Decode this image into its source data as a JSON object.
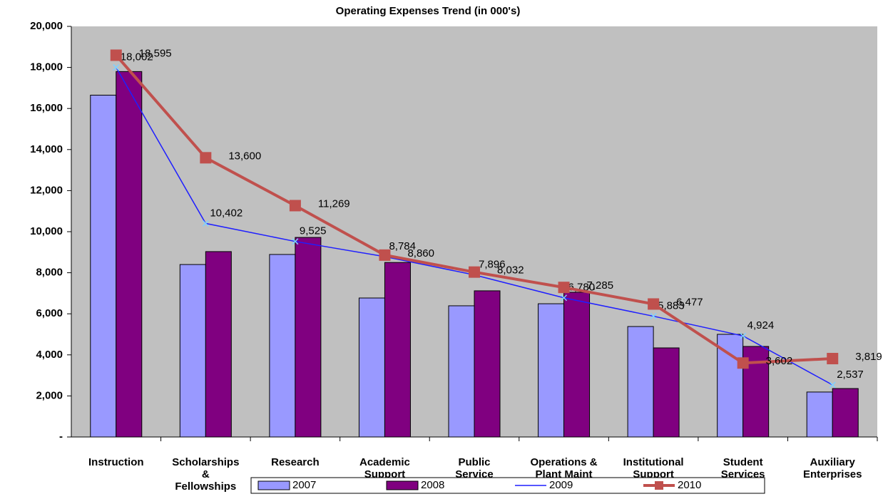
{
  "chart_data": {
    "type": "bar_line",
    "title": "Operating Expenses Trend (in 000's)",
    "categories": [
      [
        "Instruction"
      ],
      [
        "Scholarships",
        "&",
        "Fellowships"
      ],
      [
        "Research"
      ],
      [
        "Academic",
        "Support"
      ],
      [
        "Public",
        "Service"
      ],
      [
        "Operations &",
        "Plant Maint"
      ],
      [
        "Institutional",
        "Support"
      ],
      [
        "Student",
        "Services"
      ],
      [
        "Auxiliary",
        "Enterprises"
      ]
    ],
    "series": [
      {
        "name": "2007",
        "kind": "bar",
        "color": "#9999ff",
        "values": [
          16650,
          8400,
          8890,
          6770,
          6390,
          6490,
          5380,
          5000,
          2190
        ]
      },
      {
        "name": "2008",
        "kind": "bar",
        "color": "#800080",
        "values": [
          17800,
          9030,
          9720,
          8500,
          7120,
          7050,
          4340,
          4410,
          2360
        ]
      },
      {
        "name": "2009",
        "kind": "line",
        "color": "#1f1fff",
        "values": [
          18002,
          10402,
          9525,
          8784,
          7896,
          6780,
          5883,
          4924,
          2537
        ],
        "value_labels": [
          "18,002",
          "10,402",
          "9,525",
          "8,784",
          "7,896",
          "6,780",
          "5,883",
          "4,924",
          "2,537"
        ]
      },
      {
        "name": "2010",
        "kind": "line",
        "color": "#c0504d",
        "values": [
          18595,
          13600,
          11269,
          8860,
          8032,
          7285,
          6477,
          3602,
          3819
        ],
        "value_labels": [
          "18,595",
          "13,600",
          "11,269",
          "8,860",
          "8,032",
          "7,285",
          "6,477",
          "3,602",
          "3,819"
        ]
      }
    ],
    "ylim": [
      0,
      20000
    ],
    "yticks": [
      {
        "value": 0,
        "label": "-"
      },
      {
        "value": 2000,
        "label": "2,000"
      },
      {
        "value": 4000,
        "label": "4,000"
      },
      {
        "value": 6000,
        "label": "6,000"
      },
      {
        "value": 8000,
        "label": "8,000"
      },
      {
        "value": 10000,
        "label": "10,000"
      },
      {
        "value": 12000,
        "label": "12,000"
      },
      {
        "value": 14000,
        "label": "14,000"
      },
      {
        "value": 16000,
        "label": "16,000"
      },
      {
        "value": 18000,
        "label": "18,000"
      },
      {
        "value": 20000,
        "label": "20,000"
      }
    ],
    "grid": false,
    "plot_background": "#c0c0c0",
    "legend": "bottom"
  }
}
